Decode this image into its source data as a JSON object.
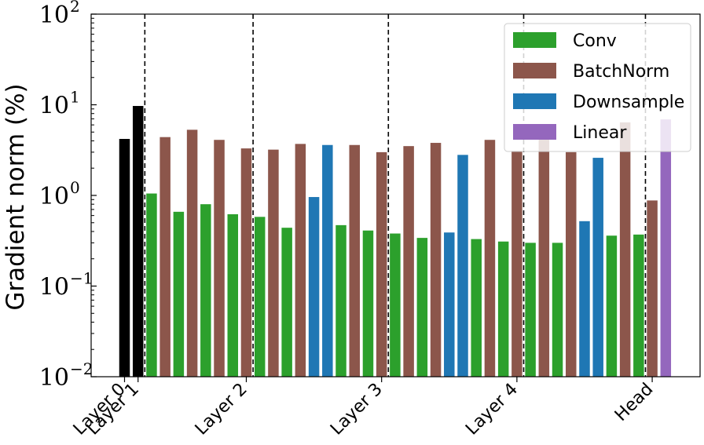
{
  "chart_data": {
    "type": "bar",
    "ylabel": "Gradient norm (%)",
    "yscale": "log",
    "ylim": [
      0.01,
      100
    ],
    "y_ticks": [
      {
        "value": 0.01,
        "base": "10",
        "exp": "−2"
      },
      {
        "value": 0.1,
        "base": "10",
        "exp": "−1"
      },
      {
        "value": 1,
        "base": "10",
        "exp": "0"
      },
      {
        "value": 10,
        "base": "10",
        "exp": "1"
      },
      {
        "value": 100,
        "base": "10",
        "exp": "2"
      }
    ],
    "x_ticks": [
      {
        "label": "Layer 0",
        "index": 0
      },
      {
        "label": "Layer 1",
        "index": 1
      },
      {
        "label": "Layer 2",
        "index": 9
      },
      {
        "label": "Layer 3",
        "index": 19
      },
      {
        "label": "Layer 4",
        "index": 29
      },
      {
        "label": "Head",
        "index": 39
      }
    ],
    "layer_boundaries_after_index": [
      1,
      9,
      19,
      29,
      38
    ],
    "legend": {
      "placement": "top-right",
      "entries": [
        {
          "name": "Conv",
          "color": "#2ca02c"
        },
        {
          "name": "BatchNorm",
          "color": "#8c564b"
        },
        {
          "name": "Downsample",
          "color": "#1f77b4"
        },
        {
          "name": "Linear",
          "color": "#9467bd"
        }
      ]
    },
    "colors": {
      "stem": "#000000",
      "conv": "#2ca02c",
      "bn": "#8c564b",
      "ds": "#1f77b4",
      "linear": "#9467bd"
    },
    "bars": [
      {
        "kind": "stem",
        "value": 4.2
      },
      {
        "kind": "stem",
        "value": 9.7
      },
      {
        "kind": "conv",
        "value": 1.05
      },
      {
        "kind": "bn",
        "value": 4.4
      },
      {
        "kind": "conv",
        "value": 0.66
      },
      {
        "kind": "bn",
        "value": 5.3
      },
      {
        "kind": "conv",
        "value": 0.8
      },
      {
        "kind": "bn",
        "value": 4.1
      },
      {
        "kind": "conv",
        "value": 0.62
      },
      {
        "kind": "bn",
        "value": 3.3
      },
      {
        "kind": "conv",
        "value": 0.58
      },
      {
        "kind": "bn",
        "value": 3.2
      },
      {
        "kind": "conv",
        "value": 0.44
      },
      {
        "kind": "bn",
        "value": 3.7
      },
      {
        "kind": "ds",
        "value": 0.96
      },
      {
        "kind": "ds",
        "value": 3.6
      },
      {
        "kind": "conv",
        "value": 0.47
      },
      {
        "kind": "bn",
        "value": 3.6
      },
      {
        "kind": "conv",
        "value": 0.41
      },
      {
        "kind": "bn",
        "value": 3.0
      },
      {
        "kind": "conv",
        "value": 0.38
      },
      {
        "kind": "bn",
        "value": 3.5
      },
      {
        "kind": "conv",
        "value": 0.34
      },
      {
        "kind": "bn",
        "value": 3.8
      },
      {
        "kind": "ds",
        "value": 0.39
      },
      {
        "kind": "ds",
        "value": 2.8
      },
      {
        "kind": "conv",
        "value": 0.33
      },
      {
        "kind": "bn",
        "value": 4.1
      },
      {
        "kind": "conv",
        "value": 0.31
      },
      {
        "kind": "bn",
        "value": 3.1
      },
      {
        "kind": "conv",
        "value": 0.3
      },
      {
        "kind": "bn",
        "value": 4.5
      },
      {
        "kind": "conv",
        "value": 0.3
      },
      {
        "kind": "bn",
        "value": 3.0
      },
      {
        "kind": "ds",
        "value": 0.52
      },
      {
        "kind": "ds",
        "value": 2.6
      },
      {
        "kind": "conv",
        "value": 0.36
      },
      {
        "kind": "bn",
        "value": 6.4
      },
      {
        "kind": "conv",
        "value": 0.37
      },
      {
        "kind": "bn",
        "value": 0.88
      },
      {
        "kind": "linear",
        "value": 6.9
      }
    ]
  }
}
